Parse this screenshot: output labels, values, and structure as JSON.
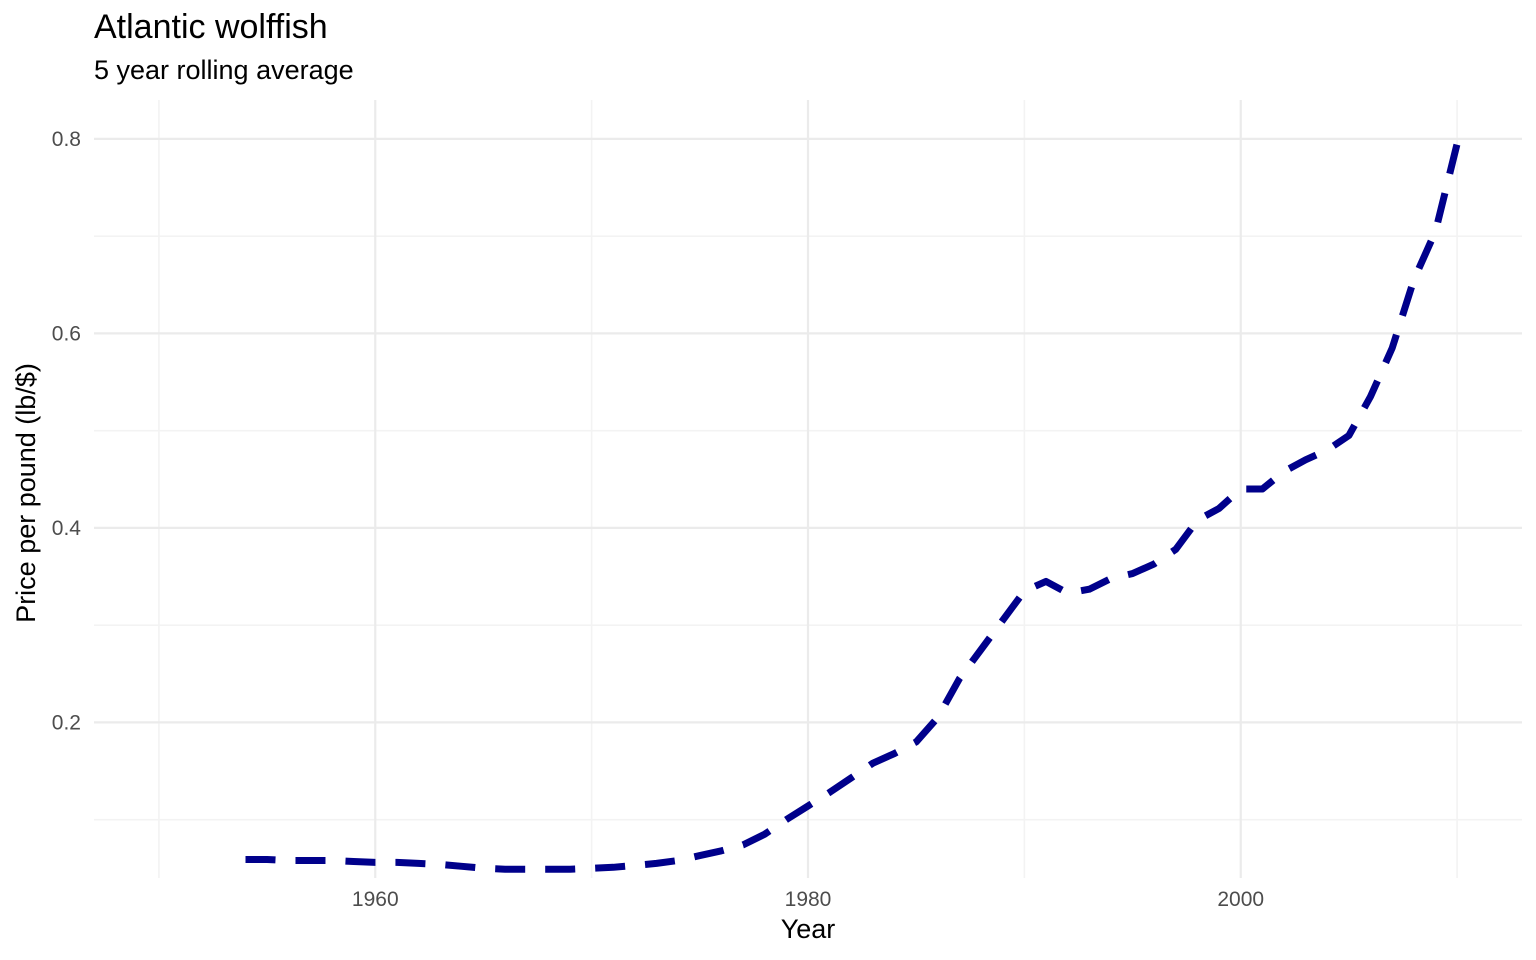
{
  "chart_data": {
    "type": "line",
    "title": "Atlantic wolffish",
    "subtitle": "5 year rolling average",
    "xlabel": "Year",
    "ylabel": "Price per pound (lb/$)",
    "xlim": [
      1947,
      2013
    ],
    "ylim": [
      0.04,
      0.84
    ],
    "x_ticks": [
      1960,
      1980,
      2000
    ],
    "x_tick_labels": [
      "1960",
      "1980",
      "2000"
    ],
    "x_minor_ticks": [
      1950,
      1970,
      1990,
      2010
    ],
    "y_ticks": [
      0.2,
      0.4,
      0.6,
      0.8
    ],
    "y_tick_labels": [
      "0.2",
      "0.4",
      "0.6",
      "0.8"
    ],
    "y_minor_ticks": [
      0.1,
      0.3,
      0.5,
      0.7
    ],
    "grid": true,
    "legend": "none",
    "line_style": "dashed",
    "line_color": "#00008b",
    "series": [
      {
        "x": [
          1954,
          1955,
          1956,
          1957,
          1958,
          1959,
          1960,
          1961,
          1962,
          1963,
          1964,
          1965,
          1966,
          1967,
          1968,
          1969,
          1970,
          1971,
          1972,
          1973,
          1974,
          1975,
          1976,
          1977,
          1978,
          1979,
          1980,
          1981,
          1982,
          1983,
          1984,
          1985,
          1986,
          1987,
          1988,
          1989,
          1990,
          1991,
          1992,
          1993,
          1994,
          1995,
          1996,
          1997,
          1998,
          1999,
          2000,
          2001,
          2002,
          2003,
          2004,
          2005,
          2006,
          2007,
          2008,
          2009,
          2010
        ],
        "y": [
          0.059,
          0.059,
          0.058,
          0.058,
          0.058,
          0.057,
          0.056,
          0.056,
          0.055,
          0.054,
          0.052,
          0.05,
          0.049,
          0.049,
          0.049,
          0.049,
          0.05,
          0.051,
          0.053,
          0.055,
          0.058,
          0.063,
          0.068,
          0.074,
          0.085,
          0.1,
          0.114,
          0.128,
          0.143,
          0.158,
          0.168,
          0.18,
          0.205,
          0.245,
          0.275,
          0.305,
          0.335,
          0.345,
          0.333,
          0.337,
          0.348,
          0.353,
          0.363,
          0.378,
          0.408,
          0.42,
          0.44,
          0.44,
          0.458,
          0.47,
          0.48,
          0.495,
          0.535,
          0.585,
          0.655,
          0.705,
          0.795
        ]
      }
    ]
  }
}
